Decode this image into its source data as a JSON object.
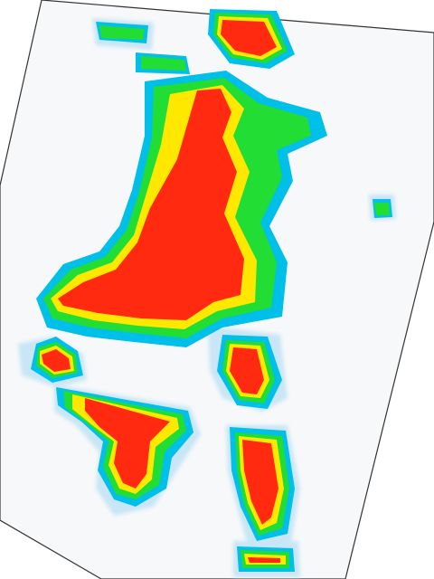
{
  "image": {
    "kind": "rotated heatmap sheet",
    "background_color": "#ffffff",
    "sheet_color": "#f7f8f9",
    "sheet_border_color": "#333333"
  },
  "heatmap": {
    "palette": {
      "high": "#ff2a10",
      "upper": "#ffe800",
      "mid": "#22dd33",
      "low": "#00bfe8",
      "faint": "#c8e6f5"
    }
  }
}
